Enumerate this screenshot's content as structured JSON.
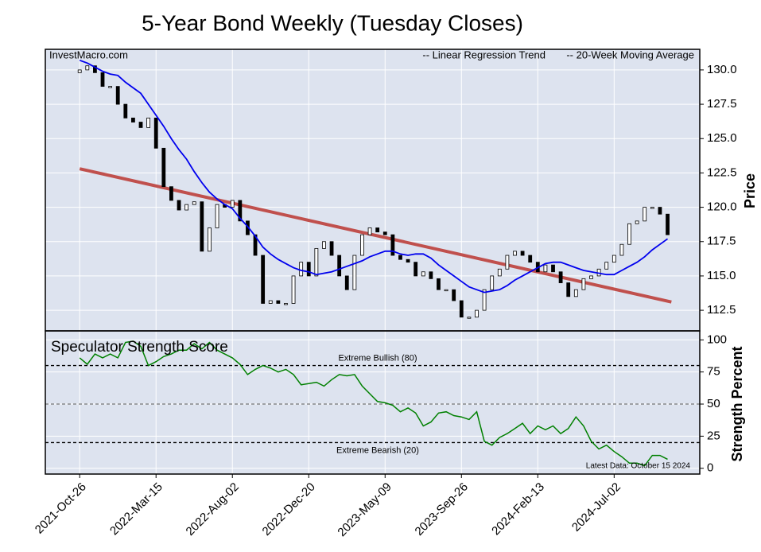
{
  "title": "5-Year Bond Weekly (Tuesday Closes)",
  "chart_data": [
    {
      "type": "candlestick",
      "source": "InvestMacro.com",
      "y_label": "Price",
      "x": [
        "2021-10-26",
        "2021-11-09",
        "2021-11-23",
        "2021-12-07",
        "2021-12-21",
        "2022-01-04",
        "2022-01-18",
        "2022-02-01",
        "2022-02-15",
        "2022-03-01",
        "2022-03-15",
        "2022-03-29",
        "2022-04-12",
        "2022-04-26",
        "2022-05-10",
        "2022-05-24",
        "2022-06-07",
        "2022-06-21",
        "2022-07-05",
        "2022-07-19",
        "2022-08-02",
        "2022-08-16",
        "2022-08-30",
        "2022-09-13",
        "2022-09-27",
        "2022-10-11",
        "2022-10-25",
        "2022-11-08",
        "2022-11-22",
        "2022-12-06",
        "2022-12-20",
        "2023-01-03",
        "2023-01-17",
        "2023-01-31",
        "2023-02-14",
        "2023-02-28",
        "2023-03-14",
        "2023-03-28",
        "2023-04-11",
        "2023-04-25",
        "2023-05-09",
        "2023-05-23",
        "2023-06-06",
        "2023-06-20",
        "2023-07-04",
        "2023-07-18",
        "2023-08-01",
        "2023-08-15",
        "2023-08-29",
        "2023-09-12",
        "2023-09-26",
        "2023-10-10",
        "2023-10-24",
        "2023-11-07",
        "2023-11-21",
        "2023-12-05",
        "2023-12-19",
        "2024-01-02",
        "2024-01-16",
        "2024-01-30",
        "2024-02-13",
        "2024-02-27",
        "2024-03-12",
        "2024-03-26",
        "2024-04-09",
        "2024-04-23",
        "2024-05-07",
        "2024-05-21",
        "2024-06-04",
        "2024-06-18",
        "2024-07-02",
        "2024-07-16",
        "2024-07-30",
        "2024-08-13",
        "2024-08-27",
        "2024-09-10",
        "2024-09-24",
        "2024-10-08"
      ],
      "open": [
        129.8,
        130.0,
        130.3,
        129.8,
        128.8,
        128.8,
        127.5,
        126.5,
        126.2,
        125.8,
        126.5,
        124.3,
        121.5,
        120.5,
        119.8,
        120.2,
        120.4,
        116.8,
        118.5,
        120.2,
        120.0,
        120.5,
        119.0,
        118.0,
        116.5,
        113.0,
        113.2,
        113.0,
        113.0,
        115.0,
        116.0,
        115.0,
        117.0,
        117.5,
        116.5,
        115.0,
        114.0,
        116.5,
        118.0,
        118.5,
        118.2,
        118.0,
        116.5,
        116.2,
        116.0,
        115.0,
        115.3,
        114.8,
        114.0,
        114.0,
        113.2,
        112.0,
        112.0,
        112.5,
        114.0,
        115.0,
        115.5,
        116.5,
        116.8,
        116.5,
        116.0,
        115.3,
        115.8,
        115.3,
        114.5,
        113.5,
        114.0,
        114.8,
        115.0,
        115.5,
        116.0,
        116.5,
        117.3,
        118.8,
        119.0,
        120.0,
        120.0,
        119.5
      ],
      "close": [
        130.0,
        130.3,
        129.8,
        128.8,
        128.8,
        127.5,
        126.5,
        126.2,
        125.8,
        126.5,
        124.3,
        121.5,
        120.5,
        119.8,
        120.2,
        120.4,
        116.8,
        118.5,
        120.2,
        120.0,
        120.5,
        119.0,
        118.0,
        116.5,
        113.0,
        113.2,
        113.0,
        113.0,
        115.0,
        116.0,
        115.0,
        117.0,
        117.5,
        116.5,
        115.0,
        114.0,
        116.5,
        118.0,
        118.5,
        118.2,
        118.0,
        116.5,
        116.2,
        116.0,
        115.0,
        115.3,
        114.8,
        114.0,
        114.0,
        113.2,
        112.0,
        112.0,
        112.5,
        114.0,
        115.0,
        115.5,
        116.5,
        116.8,
        116.5,
        116.0,
        115.3,
        115.8,
        115.3,
        114.5,
        113.5,
        114.0,
        114.8,
        115.0,
        115.5,
        116.0,
        116.5,
        117.3,
        118.8,
        119.0,
        120.0,
        120.0,
        119.5,
        118.0
      ],
      "series": [
        {
          "name": "-- 20-Week Moving Average",
          "color": "#0000ee",
          "values": [
            130.7,
            130.5,
            130.2,
            129.9,
            129.7,
            129.6,
            129.1,
            128.7,
            128.3,
            127.5,
            126.7,
            125.9,
            125.0,
            124.2,
            123.5,
            122.6,
            121.8,
            121.1,
            120.6,
            120.2,
            119.9,
            119.2,
            118.6,
            117.9,
            117.1,
            116.6,
            116.2,
            115.9,
            115.6,
            115.4,
            115.3,
            115.1,
            115.2,
            115.3,
            115.5,
            115.7,
            115.9,
            116.1,
            116.4,
            116.6,
            116.8,
            116.8,
            116.6,
            116.5,
            116.6,
            116.6,
            116.3,
            115.8,
            115.4,
            115.0,
            114.6,
            114.2,
            114.0,
            113.8,
            113.9,
            114.0,
            114.3,
            114.7,
            115.0,
            115.3,
            115.6,
            115.9,
            116.0,
            116.0,
            115.8,
            115.6,
            115.4,
            115.3,
            115.2,
            115.1,
            115.1,
            115.4,
            115.7,
            116.0,
            116.4,
            116.9,
            117.3,
            117.7
          ]
        },
        {
          "name": "-- Linear Regression Trend",
          "color": "#c0504d",
          "x": [
            "2021-10-26",
            "2024-10-15"
          ],
          "values": [
            122.8,
            113.1
          ]
        }
      ],
      "xlim": [
        "2021-08-24",
        "2024-12-06"
      ],
      "ylim": [
        111,
        131.5
      ],
      "yticks": [
        {
          "value": 112.5,
          "label": "112.5"
        },
        {
          "value": 115,
          "label": "115.0"
        },
        {
          "value": 117.5,
          "label": "117.5"
        },
        {
          "value": 120,
          "label": "120.0"
        },
        {
          "value": 122.5,
          "label": "122.5"
        },
        {
          "value": 125,
          "label": "125.0"
        },
        {
          "value": 127.5,
          "label": "127.5"
        },
        {
          "value": 130,
          "label": "130.0"
        }
      ],
      "grid": true
    },
    {
      "type": "line",
      "title": "Speculator Strength Score",
      "y_label": "Strength Percent",
      "note": "Latest Data: October 15 2024",
      "series": [
        {
          "name": "Speculator Strength Score",
          "color": "#008000",
          "values": [
            86,
            81,
            89,
            86,
            89,
            86,
            98,
            99,
            95,
            80,
            83,
            87,
            89,
            92,
            92,
            97,
            93,
            98,
            92,
            89,
            86,
            81,
            73,
            77,
            80,
            78,
            75,
            77,
            73,
            65,
            66,
            67,
            64,
            69,
            73,
            72,
            73,
            64,
            58,
            52,
            51,
            49,
            44,
            47,
            43,
            33,
            36,
            43,
            44,
            41,
            40,
            38,
            44,
            21,
            18,
            24,
            27,
            31,
            35,
            27,
            33,
            30,
            33,
            27,
            31,
            40,
            33,
            21,
            15,
            18,
            13,
            9,
            4,
            4,
            2,
            10,
            10,
            7
          ]
        }
      ],
      "reference_lines": [
        {
          "value": 80,
          "label": "Extreme Bullish (80)",
          "color": "#000000"
        },
        {
          "value": 50,
          "color": "#777777"
        },
        {
          "value": 20,
          "label": "Extreme Bearish (20)",
          "color": "#000000"
        }
      ],
      "ylim": [
        -4.5,
        107
      ],
      "yticks": [
        0,
        25,
        50,
        75,
        100
      ],
      "xticks": [
        {
          "value": "2021-10-26",
          "label": "2021-Oct-26"
        },
        {
          "value": "2022-03-15",
          "label": "2022-Mar-15"
        },
        {
          "value": "2022-08-02",
          "label": "2022-Aug-02"
        },
        {
          "value": "2022-12-20",
          "label": "2022-Dec-20"
        },
        {
          "value": "2023-05-09",
          "label": "2023-May-09"
        },
        {
          "value": "2023-09-26",
          "label": "2023-Sep-26"
        },
        {
          "value": "2024-02-13",
          "label": "2024-Feb-13"
        },
        {
          "value": "2024-07-02",
          "label": "2024-Jul-02"
        }
      ],
      "grid": true
    }
  ]
}
